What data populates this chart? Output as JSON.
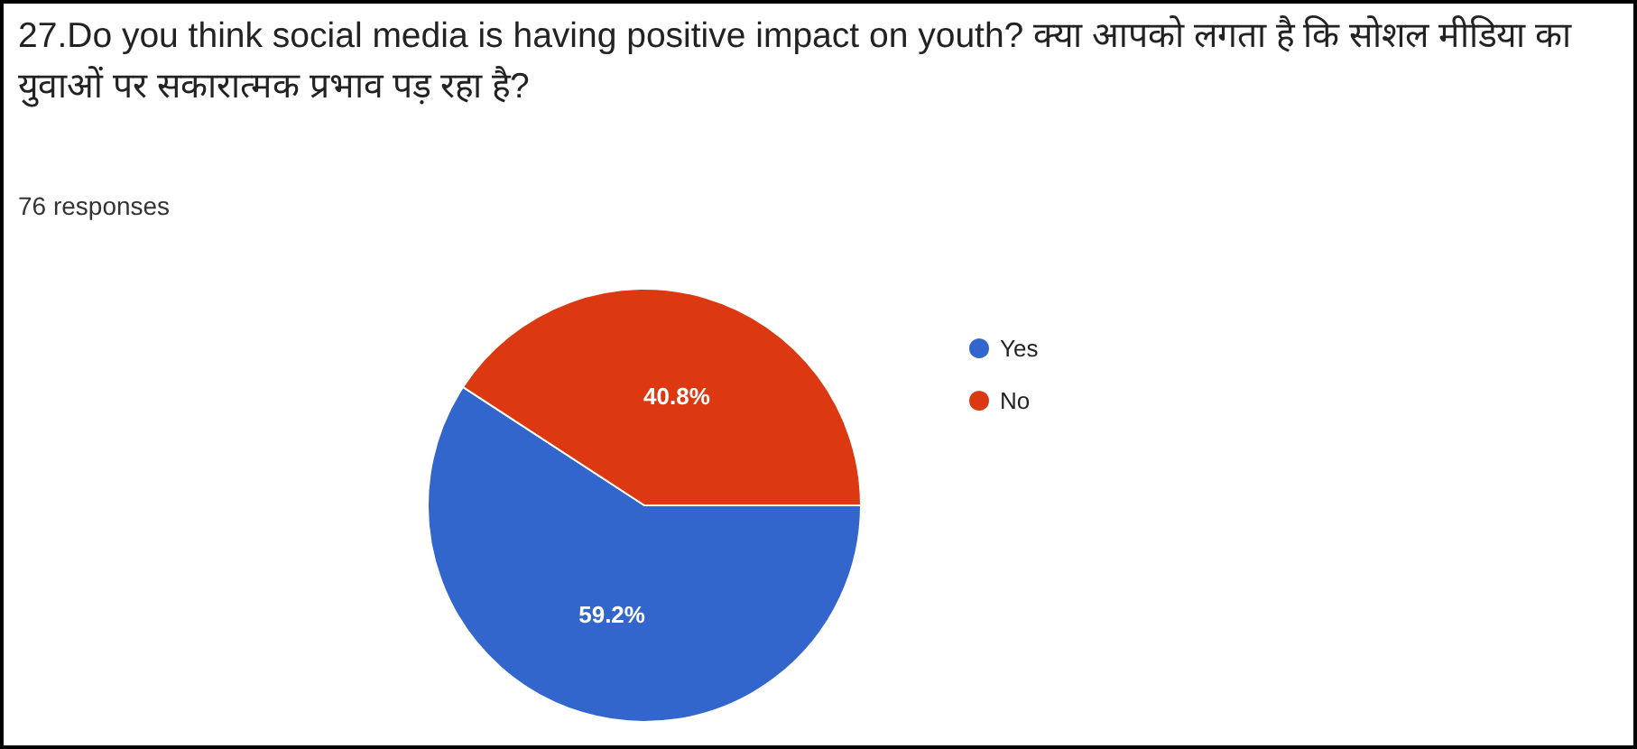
{
  "chart_data": {
    "type": "pie",
    "title": "27.Do you think social media is having positive impact on youth? क्या आपको लगता है कि सोशल मीडिया का युवाओं पर सकारात्मक प्रभाव पड़ रहा है?",
    "subtitle": "76 responses",
    "categories": [
      "Yes",
      "No"
    ],
    "values": [
      59.2,
      40.8
    ],
    "colors": [
      "#3366cc",
      "#dc3912"
    ],
    "value_labels": [
      "59.2%",
      "40.8%"
    ],
    "legend": "right"
  }
}
